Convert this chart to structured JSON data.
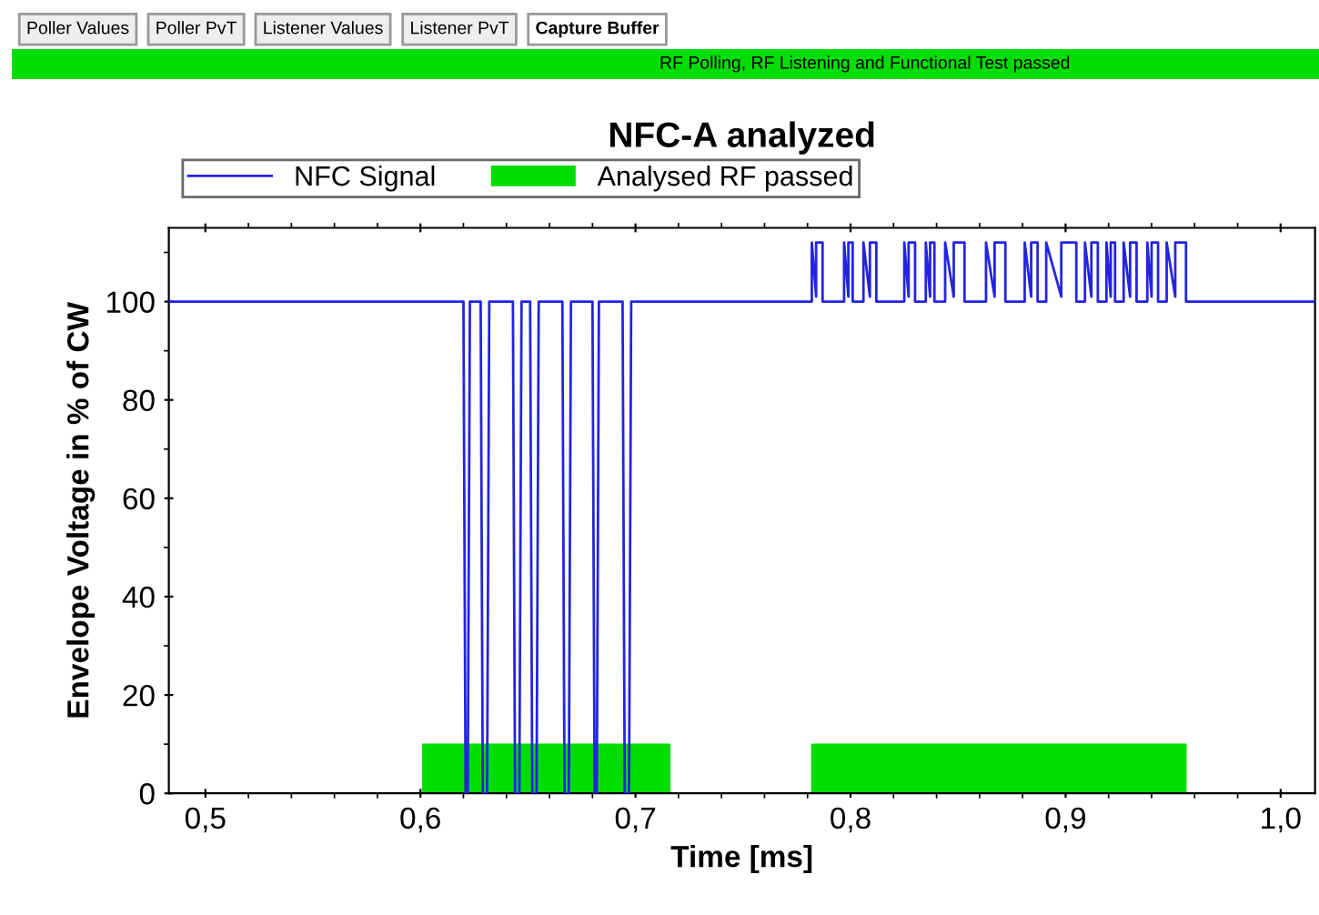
{
  "chart_data": {
    "type": "line",
    "title": "NFC-A analyzed",
    "xlabel": "Time [ms]",
    "ylabel": "Envelope Voltage in % of CW",
    "annotations": [
      "Poller Values",
      "Poller PvT",
      "Listener Values",
      "Listener PvT",
      "Capture Buffer",
      "RF Polling, RF Listening and Functional Test passed"
    ],
    "series": [
      {
        "name": "NFC Signal",
        "color": "#2424e0",
        "x": [
          0.483,
          0.62,
          0.621,
          0.622,
          0.623,
          0.628,
          0.629,
          0.631,
          0.632,
          0.643,
          0.644,
          0.646,
          0.647,
          0.651,
          0.652,
          0.654,
          0.655,
          0.666,
          0.667,
          0.669,
          0.67,
          0.68,
          0.681,
          0.682,
          0.683,
          0.694,
          0.695,
          0.697,
          0.698,
          0.782,
          0.782,
          0.784,
          0.784,
          0.787,
          0.787,
          0.797,
          0.797,
          0.799,
          0.799,
          0.801,
          0.801,
          0.806,
          0.806,
          0.809,
          0.809,
          0.812,
          0.812,
          0.825,
          0.825,
          0.827,
          0.827,
          0.83,
          0.83,
          0.835,
          0.835,
          0.837,
          0.837,
          0.839,
          0.839,
          0.844,
          0.844,
          0.848,
          0.848,
          0.853,
          0.853,
          0.863,
          0.863,
          0.867,
          0.867,
          0.872,
          0.872,
          0.881,
          0.881,
          0.884,
          0.884,
          0.887,
          0.887,
          0.891,
          0.891,
          0.898,
          0.898,
          0.905,
          0.905,
          0.909,
          0.909,
          0.912,
          0.912,
          0.915,
          0.915,
          0.919,
          0.919,
          0.921,
          0.921,
          0.923,
          0.923,
          0.927,
          0.927,
          0.93,
          0.93,
          0.933,
          0.933,
          0.938,
          0.938,
          0.94,
          0.94,
          0.943,
          0.943,
          0.947,
          0.947,
          0.951,
          0.951,
          0.956,
          0.956,
          1.016
        ],
        "values": [
          100,
          100,
          0,
          0,
          100,
          100,
          0,
          0,
          100,
          100,
          0,
          0,
          100,
          100,
          0,
          0,
          100,
          100,
          0,
          0,
          100,
          100,
          0,
          0,
          100,
          100,
          0,
          0,
          100,
          100,
          112,
          101,
          112,
          112,
          100,
          100,
          112,
          101,
          112,
          112,
          100,
          100,
          112,
          101,
          112,
          112,
          100,
          100,
          112,
          101,
          112,
          112,
          100,
          100,
          112,
          101,
          112,
          112,
          100,
          100,
          112,
          101,
          112,
          112,
          100,
          100,
          112,
          101,
          112,
          112,
          100,
          100,
          112,
          101,
          112,
          112,
          100,
          100,
          112,
          101,
          112,
          112,
          100,
          100,
          112,
          101,
          112,
          112,
          100,
          100,
          112,
          101,
          112,
          112,
          100,
          100,
          112,
          101,
          112,
          112,
          100,
          100,
          112,
          101,
          112,
          112,
          100,
          100,
          112,
          101,
          112,
          112,
          100,
          100
        ]
      },
      {
        "name": "Analysed RF passed",
        "type": "area",
        "color": "#00dd00",
        "x": [
          0.483,
          0.601,
          0.601,
          0.716,
          0.716,
          0.782,
          0.782,
          0.956,
          0.956,
          1.016
        ],
        "values": [
          0,
          0,
          10,
          10,
          0,
          0,
          10,
          10,
          0,
          0
        ]
      }
    ],
    "xlim": [
      0.483,
      1.016
    ],
    "xticks": [
      {
        "value": 0.5,
        "label": "0,5"
      },
      {
        "value": 0.6,
        "label": "0,6"
      },
      {
        "value": 0.7,
        "label": "0,7"
      },
      {
        "value": 0.8,
        "label": "0,8"
      },
      {
        "value": 0.9,
        "label": "0,9"
      },
      {
        "value": 1.0,
        "label": "1,0"
      }
    ],
    "ylim": [
      0,
      115
    ],
    "yticks": [
      0,
      20,
      40,
      60,
      80,
      100
    ],
    "grid": false,
    "legend": "top",
    "marker": "none",
    "line_style": "solid"
  }
}
